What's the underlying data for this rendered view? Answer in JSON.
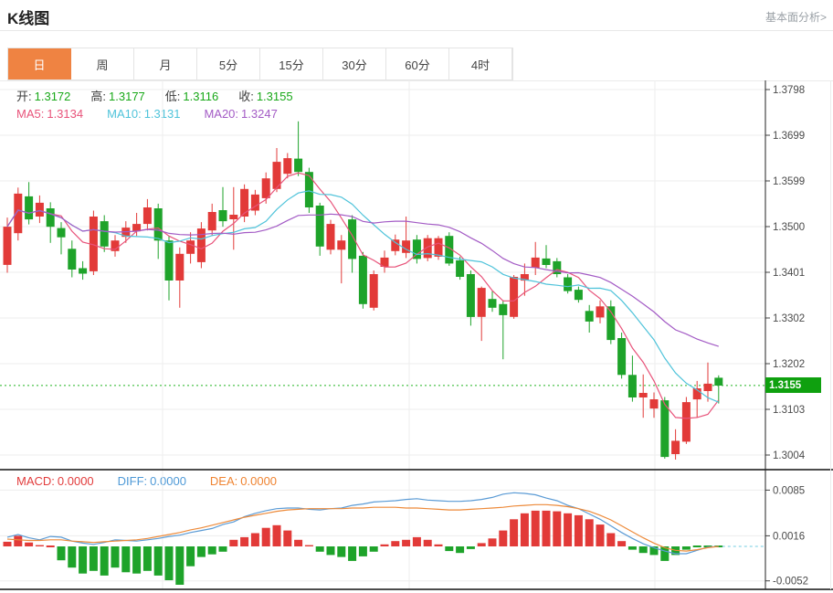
{
  "header": {
    "title": "K线图",
    "link": "基本面分析>"
  },
  "tabs": [
    {
      "key": "day",
      "label": "日",
      "active": true
    },
    {
      "key": "week",
      "label": "周",
      "active": false
    },
    {
      "key": "month",
      "label": "月",
      "active": false
    },
    {
      "key": "5min",
      "label": "5分",
      "active": false
    },
    {
      "key": "15min",
      "label": "15分",
      "active": false
    },
    {
      "key": "30min",
      "label": "30分",
      "active": false
    },
    {
      "key": "60min",
      "label": "60分",
      "active": false
    },
    {
      "key": "4hour",
      "label": "4时",
      "active": false
    }
  ],
  "legend": {
    "ohlc": [
      {
        "label": "开:",
        "value": "1.3172"
      },
      {
        "label": "高:",
        "value": "1.3177"
      },
      {
        "label": "低:",
        "value": "1.3116"
      },
      {
        "label": "收:",
        "value": "1.3155"
      }
    ],
    "ma": [
      {
        "label": "MA5:",
        "value": "1.3134",
        "color": "#e8537a"
      },
      {
        "label": "MA10:",
        "value": "1.3131",
        "color": "#4fc3da"
      },
      {
        "label": "MA20:",
        "value": "1.3247",
        "color": "#a35bc5"
      }
    ]
  },
  "macd_legend": [
    {
      "label": "MACD:",
      "value": "0.0000",
      "color": "#e23c3c"
    },
    {
      "label": "DIFF:",
      "value": "0.0000",
      "color": "#4f9ad7"
    },
    {
      "label": "DEA:",
      "value": "0.0000",
      "color": "#ef8432"
    }
  ],
  "current_price": "1.3155",
  "colors": {
    "accent": "#ef8342",
    "up": "#e23a38",
    "down": "#1ea32a",
    "ohlc_value": "#18a818",
    "badge_bg": "#0fa00f",
    "price_line": "#21b421",
    "diff_line": "#5b9bd5",
    "dea_line": "#ed8a3a",
    "grid": "#ededed",
    "axis_text": "#4a4a4a",
    "axis_line": "#222222"
  },
  "chart_data": [
    {
      "type": "candlestick",
      "title": "K线图 (日)",
      "up_color": "#e23a38",
      "down_color": "#1ea32a",
      "grid": true,
      "legend_position": "top-left",
      "yticks": [
        "1.3798",
        "1.3699",
        "1.3599",
        "1.3500",
        "1.3401",
        "1.3302",
        "1.3202",
        "1.3103",
        "1.3004"
      ],
      "current_price": 1.3155,
      "ma_lines": [
        {
          "name": "MA5",
          "window": 5,
          "color": "#e8537a"
        },
        {
          "name": "MA10",
          "window": 10,
          "color": "#4fc3da"
        },
        {
          "name": "MA20",
          "window": 20,
          "color": "#a35bc5"
        }
      ],
      "candles_format": [
        "open",
        "high",
        "low",
        "close"
      ],
      "candles": [
        [
          1.3417,
          1.352,
          1.34,
          1.35
        ],
        [
          1.3486,
          1.3585,
          1.347,
          1.3572
        ],
        [
          1.3566,
          1.3597,
          1.3505,
          1.3516
        ],
        [
          1.3522,
          1.3568,
          1.3508,
          1.3552
        ],
        [
          1.354,
          1.3553,
          1.3465,
          1.35
        ],
        [
          1.3497,
          1.351,
          1.344,
          1.3477
        ],
        [
          1.3452,
          1.347,
          1.339,
          1.3407
        ],
        [
          1.341,
          1.3425,
          1.3385,
          1.3398
        ],
        [
          1.3403,
          1.3535,
          1.3395,
          1.3522
        ],
        [
          1.3512,
          1.3525,
          1.3445,
          1.3457
        ],
        [
          1.3447,
          1.3482,
          1.3435,
          1.347
        ],
        [
          1.3478,
          1.3512,
          1.3465,
          1.3498
        ],
        [
          1.349,
          1.353,
          1.348,
          1.3506
        ],
        [
          1.3506,
          1.356,
          1.3492,
          1.3542
        ],
        [
          1.354,
          1.355,
          1.343,
          1.347
        ],
        [
          1.347,
          1.348,
          1.334,
          1.3383
        ],
        [
          1.3383,
          1.3455,
          1.3324,
          1.3441
        ],
        [
          1.3441,
          1.3488,
          1.342,
          1.347
        ],
        [
          1.3423,
          1.351,
          1.341,
          1.3496
        ],
        [
          1.3492,
          1.355,
          1.348,
          1.3532
        ],
        [
          1.3536,
          1.3586,
          1.35,
          1.3512
        ],
        [
          1.3516,
          1.3586,
          1.345,
          1.3526
        ],
        [
          1.3522,
          1.3592,
          1.351,
          1.3582
        ],
        [
          1.3535,
          1.358,
          1.3525,
          1.357
        ],
        [
          1.3562,
          1.3618,
          1.355,
          1.3605
        ],
        [
          1.3582,
          1.3671,
          1.3575,
          1.3641
        ],
        [
          1.3615,
          1.366,
          1.3605,
          1.3649
        ],
        [
          1.3648,
          1.3729,
          1.361,
          1.3619
        ],
        [
          1.3619,
          1.3628,
          1.353,
          1.3542
        ],
        [
          1.3546,
          1.3552,
          1.3437,
          1.3457
        ],
        [
          1.345,
          1.3515,
          1.344,
          1.3506
        ],
        [
          1.345,
          1.3482,
          1.3377,
          1.347
        ],
        [
          1.3516,
          1.3525,
          1.34,
          1.343
        ],
        [
          1.3437,
          1.3445,
          1.3322,
          1.3332
        ],
        [
          1.3324,
          1.3405,
          1.3318,
          1.3397
        ],
        [
          1.3413,
          1.3448,
          1.34,
          1.3433
        ],
        [
          1.3447,
          1.3483,
          1.3438,
          1.3472
        ],
        [
          1.3443,
          1.3522,
          1.3432,
          1.347
        ],
        [
          1.3472,
          1.3482,
          1.342,
          1.343
        ],
        [
          1.3432,
          1.3482,
          1.3425,
          1.3475
        ],
        [
          1.3435,
          1.348,
          1.3428,
          1.3475
        ],
        [
          1.348,
          1.3488,
          1.3415,
          1.342
        ],
        [
          1.3427,
          1.3435,
          1.3385,
          1.3391
        ],
        [
          1.3397,
          1.3405,
          1.3285,
          1.3304
        ],
        [
          1.3304,
          1.337,
          1.3252,
          1.3367
        ],
        [
          1.3343,
          1.336,
          1.3315,
          1.3324
        ],
        [
          1.3332,
          1.334,
          1.3212,
          1.3308
        ],
        [
          1.3304,
          1.3395,
          1.33,
          1.3391
        ],
        [
          1.3383,
          1.342,
          1.335,
          1.3397
        ],
        [
          1.3411,
          1.3467,
          1.3395,
          1.3433
        ],
        [
          1.3431,
          1.346,
          1.341,
          1.3417
        ],
        [
          1.3425,
          1.3432,
          1.339,
          1.3397
        ],
        [
          1.339,
          1.3397,
          1.3355,
          1.336
        ],
        [
          1.3363,
          1.337,
          1.3335,
          1.3341
        ],
        [
          1.3317,
          1.333,
          1.327,
          1.3294
        ],
        [
          1.3303,
          1.334,
          1.329,
          1.3327
        ],
        [
          1.3327,
          1.334,
          1.3245,
          1.3254
        ],
        [
          1.3258,
          1.327,
          1.317,
          1.3178
        ],
        [
          1.3178,
          1.322,
          1.312,
          1.3129
        ],
        [
          1.3129,
          1.3179,
          1.3085,
          1.3139
        ],
        [
          1.3105,
          1.314,
          1.3085,
          1.3125
        ],
        [
          1.3123,
          1.313,
          1.2996,
          1.3
        ],
        [
          1.3006,
          1.306,
          1.2994,
          1.3035
        ],
        [
          1.3033,
          1.313,
          1.3028,
          1.3119
        ],
        [
          1.3125,
          1.3165,
          1.3085,
          1.3149
        ],
        [
          1.3143,
          1.3205,
          1.312,
          1.3159
        ],
        [
          1.3172,
          1.3177,
          1.3116,
          1.3155
        ]
      ]
    },
    {
      "type": "bar",
      "title": "MACD(12,26,9)",
      "yticks": [
        "0.0085",
        "0.0016",
        "-0.0052"
      ],
      "hist": [
        0.0007,
        0.0016,
        0.0006,
        0.0002,
        0.0,
        -0.0021,
        -0.0032,
        -0.0041,
        -0.0037,
        -0.0044,
        -0.0032,
        -0.0039,
        -0.0041,
        -0.0037,
        -0.0044,
        -0.0051,
        -0.0058,
        -0.003,
        -0.0016,
        -0.0012,
        -0.0008,
        0.001,
        0.0014,
        0.002,
        0.0028,
        0.0032,
        0.0024,
        0.001,
        0.0002,
        -0.0008,
        -0.0013,
        -0.0016,
        -0.0022,
        -0.0015,
        -0.0008,
        0.0003,
        0.0008,
        0.001,
        0.0014,
        0.001,
        0.0003,
        -0.0007,
        -0.001,
        -0.0004,
        0.0005,
        0.0012,
        0.0024,
        0.0041,
        0.005,
        0.0054,
        0.0054,
        0.0053,
        0.005,
        0.0047,
        0.0041,
        0.0033,
        0.002,
        0.0008,
        -0.0005,
        -0.001,
        -0.0013,
        -0.0022,
        -0.0013,
        -0.0005,
        0.0,
        0.0,
        0.0
      ],
      "series": [
        {
          "name": "DIFF",
          "color": "#5b9bd5",
          "values": [
            0.0014,
            0.0018,
            0.0013,
            0.001,
            0.0015,
            0.0014,
            0.0008,
            0.0005,
            0.0003,
            0.0006,
            0.001,
            0.0009,
            0.0008,
            0.001,
            0.0012,
            0.0015,
            0.0017,
            0.0021,
            0.0024,
            0.0027,
            0.0033,
            0.0037,
            0.0045,
            0.005,
            0.0054,
            0.0057,
            0.0058,
            0.0058,
            0.0056,
            0.0055,
            0.0057,
            0.0058,
            0.0062,
            0.0064,
            0.0067,
            0.0068,
            0.0069,
            0.0071,
            0.0072,
            0.007,
            0.0069,
            0.0068,
            0.0068,
            0.0069,
            0.0071,
            0.0074,
            0.0079,
            0.0081,
            0.008,
            0.0078,
            0.0073,
            0.0069,
            0.0062,
            0.0057,
            0.0049,
            0.0041,
            0.0031,
            0.0021,
            0.0012,
            0.0004,
            -0.0002,
            -0.0007,
            -0.0011,
            -0.0011,
            -0.0006,
            -0.0001,
            0.0
          ]
        },
        {
          "name": "DEA",
          "color": "#ed8a3a",
          "values": [
            0.0011,
            0.001,
            0.0009,
            0.0009,
            0.001,
            0.001,
            0.0008,
            0.0007,
            0.0006,
            0.0007,
            0.0008,
            0.0009,
            0.001,
            0.0012,
            0.0015,
            0.0018,
            0.0021,
            0.0025,
            0.0028,
            0.0032,
            0.0036,
            0.004,
            0.0044,
            0.0047,
            0.005,
            0.0053,
            0.0055,
            0.0056,
            0.0057,
            0.0057,
            0.0057,
            0.0057,
            0.0058,
            0.0058,
            0.0059,
            0.0059,
            0.0059,
            0.0058,
            0.0058,
            0.0057,
            0.0056,
            0.0055,
            0.0055,
            0.0056,
            0.0057,
            0.0058,
            0.0059,
            0.0061,
            0.0062,
            0.0063,
            0.0063,
            0.0062,
            0.006,
            0.0057,
            0.0053,
            0.0047,
            0.004,
            0.0031,
            0.0022,
            0.0013,
            0.0005,
            -0.0002,
            -0.0006,
            -0.0007,
            -0.0005,
            -0.0002,
            0.0
          ]
        }
      ]
    }
  ]
}
